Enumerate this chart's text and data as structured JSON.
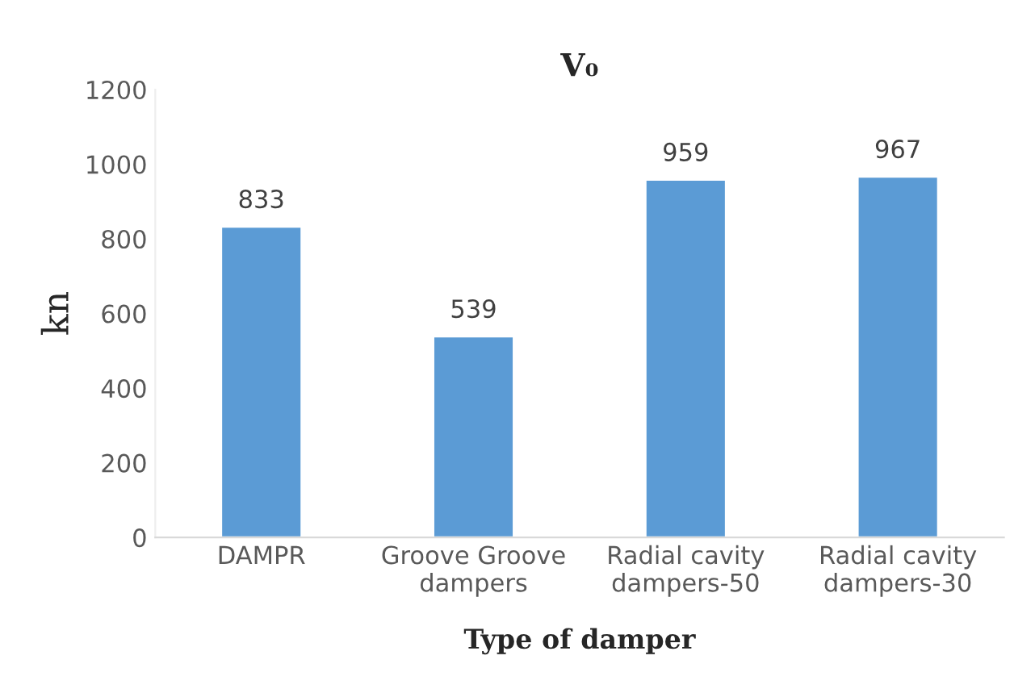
{
  "chart_data": {
    "type": "bar",
    "title": "V₀",
    "xlabel": "Type of damper",
    "ylabel": "kn",
    "categories": [
      "DAMPR",
      "Groove Groove\ndampers",
      "Radial cavity\ndampers-50",
      "Radial cavity\ndampers-30"
    ],
    "values": [
      833,
      539,
      959,
      967
    ],
    "color": "#5b9bd5",
    "ylim": [
      0,
      1200
    ],
    "yticks": [
      0,
      200,
      400,
      600,
      800,
      1000,
      1200
    ],
    "data_labels": true,
    "grid": false,
    "legend": false
  }
}
